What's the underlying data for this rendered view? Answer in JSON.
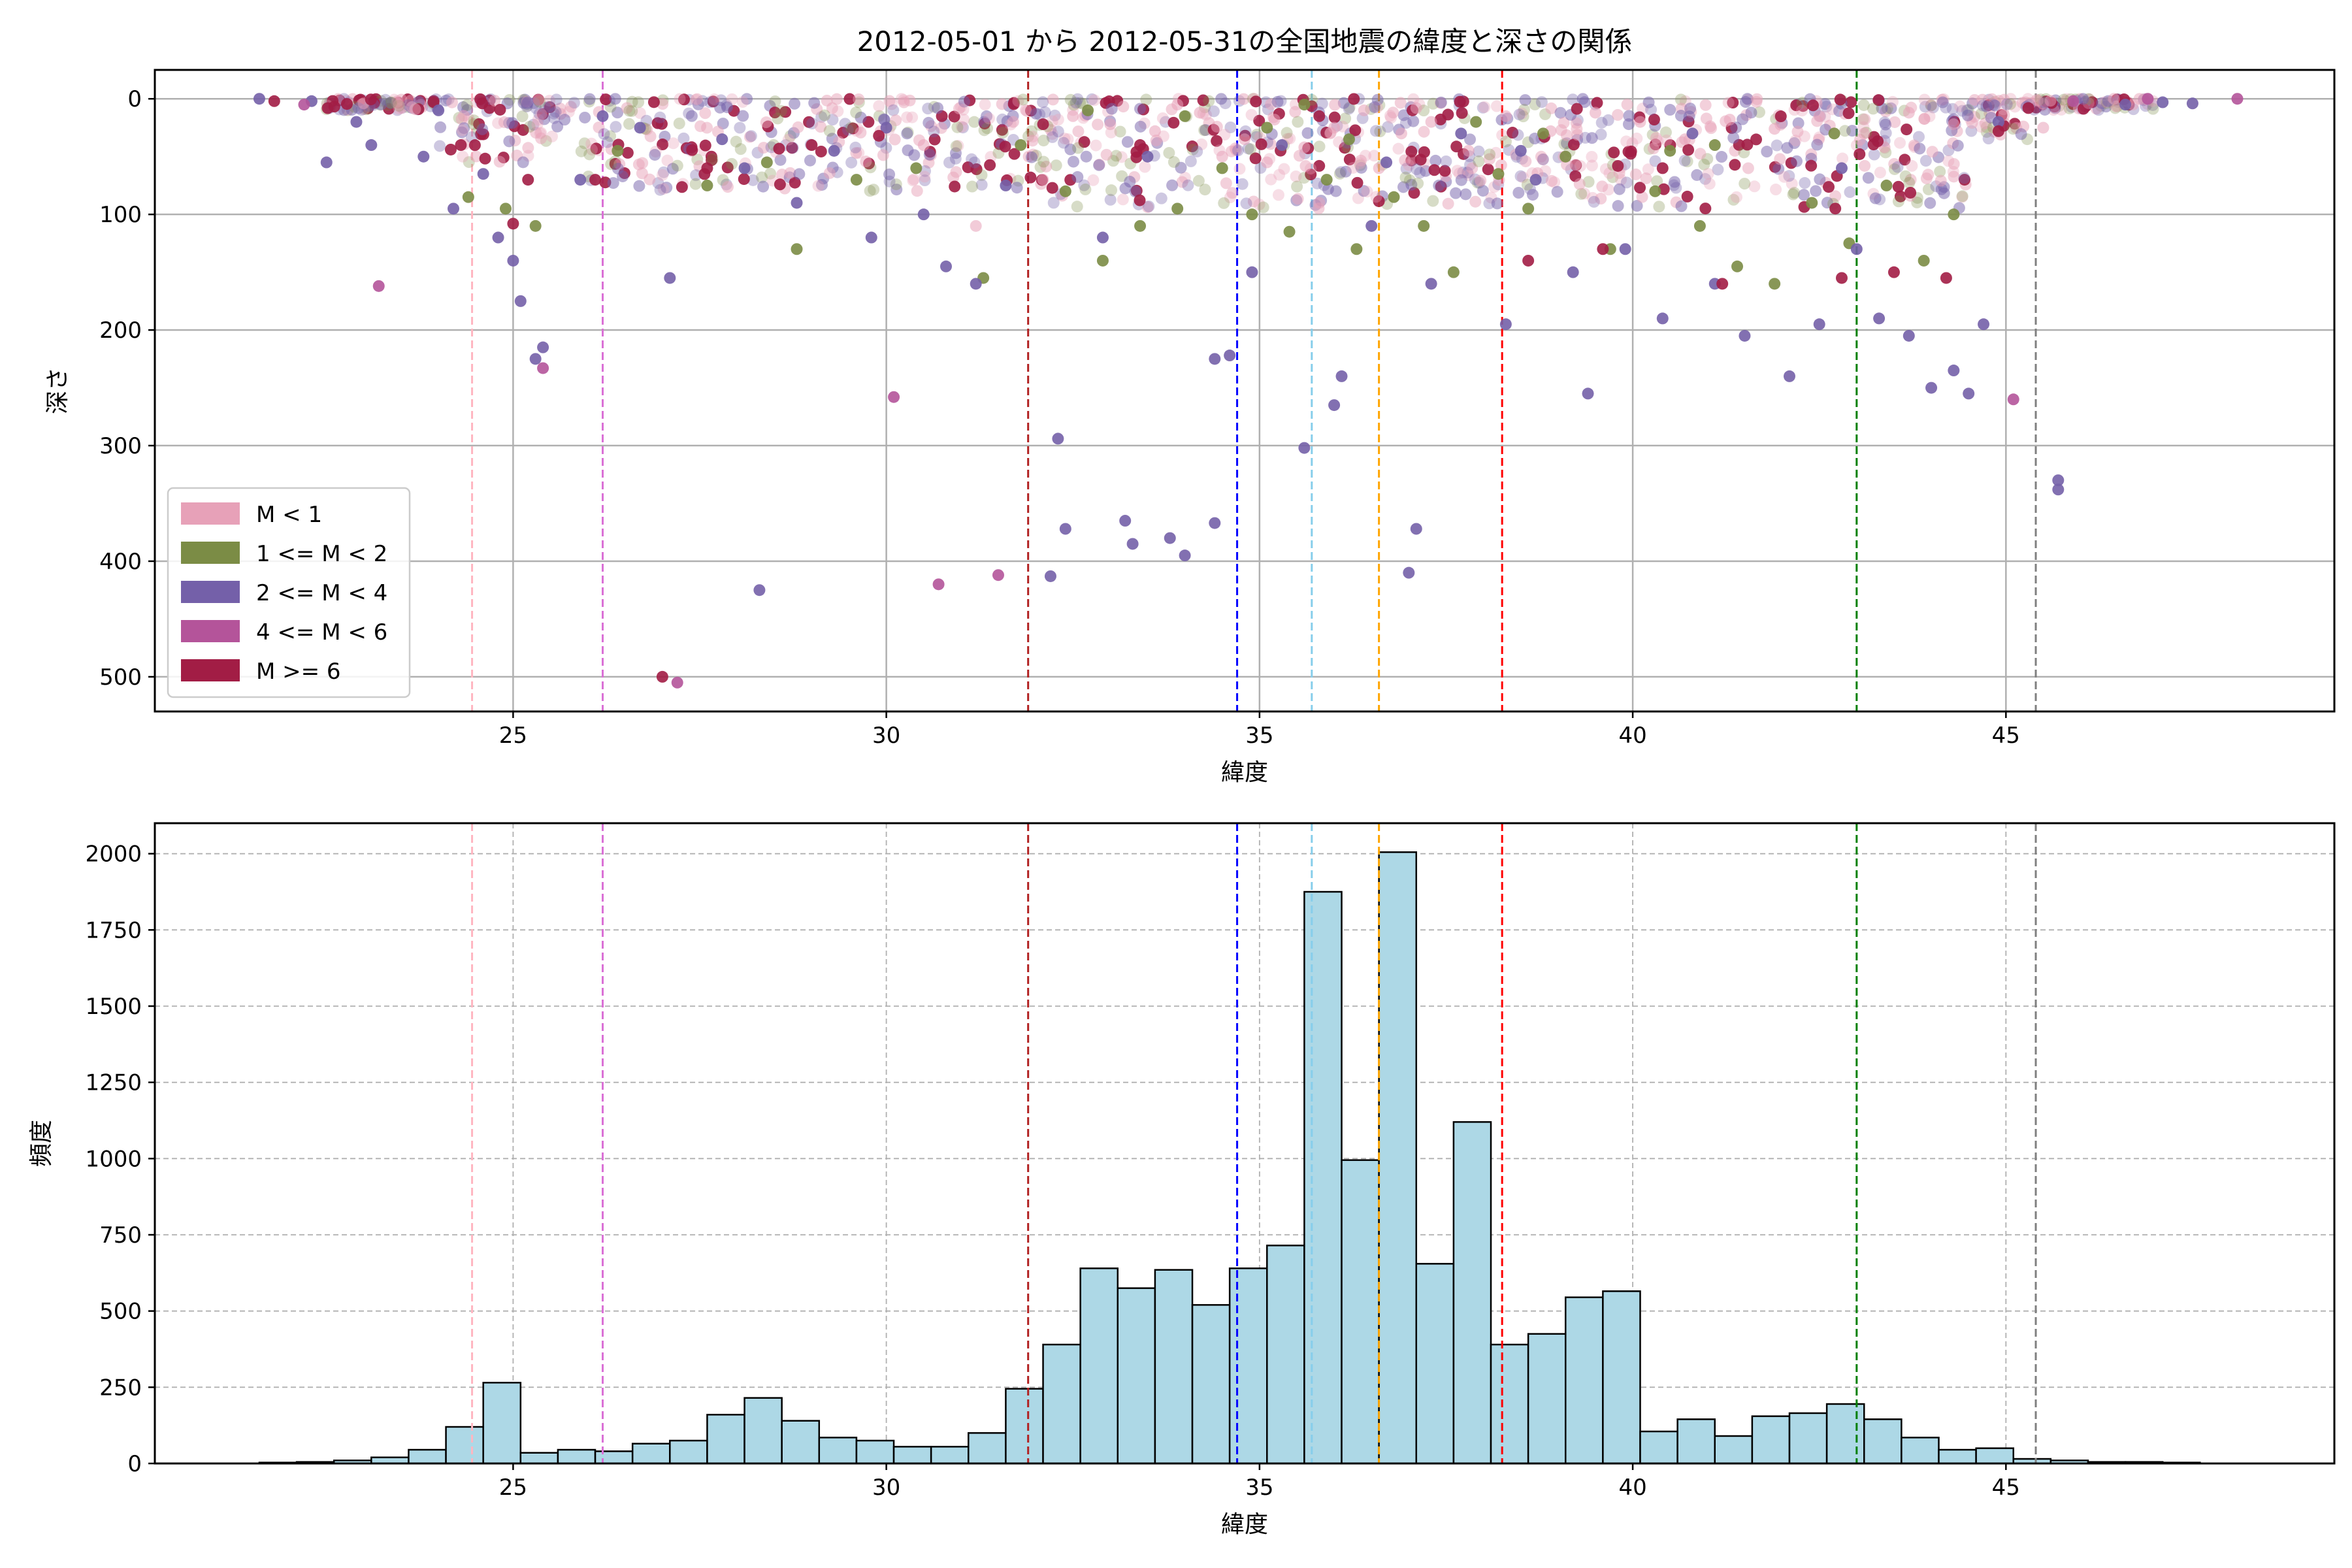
{
  "title": "2012-05-01 から 2012-05-31の全国地震の緯度と深さの関係",
  "chart_data": [
    {
      "type": "scatter",
      "xlabel": "緯度",
      "ylabel": "深さ",
      "xlim": [
        20.2,
        49.4
      ],
      "ylim": [
        530,
        -25
      ],
      "y_inverted": true,
      "xticks": [
        25,
        30,
        35,
        40,
        45
      ],
      "yticks": [
        0,
        100,
        200,
        300,
        400,
        500
      ],
      "grid": true,
      "legend_position": "lower-left",
      "series": [
        {
          "name": "M < 1",
          "color": "#e7a1b8",
          "points": [
            [
              32.5,
              15
            ],
            [
              33.0,
              22
            ],
            [
              33.6,
              28
            ],
            [
              34.2,
              12
            ],
            [
              34.8,
              35
            ],
            [
              35.2,
              18
            ],
            [
              35.6,
              42
            ],
            [
              36.0,
              25
            ],
            [
              36.4,
              10
            ],
            [
              36.9,
              30
            ],
            [
              37.3,
              20
            ],
            [
              37.8,
              45
            ],
            [
              38.3,
              15
            ],
            [
              38.9,
              28
            ],
            [
              39.5,
              12
            ],
            [
              40.1,
              20
            ],
            [
              40.7,
              35
            ],
            [
              41.3,
              18
            ],
            [
              41.9,
              26
            ],
            [
              42.5,
              15
            ],
            [
              43.1,
              30
            ],
            [
              43.7,
              12
            ],
            [
              44.3,
              22
            ],
            [
              45.5,
              25
            ],
            [
              35.8,
              90
            ],
            [
              31.7,
              20
            ],
            [
              33.9,
              5
            ],
            [
              36.6,
              60
            ],
            [
              37.1,
              8
            ],
            [
              34.5,
              50
            ],
            [
              35.1,
              55
            ],
            [
              30.5,
              40
            ],
            [
              31.2,
              110
            ],
            [
              32.1,
              70
            ]
          ]
        },
        {
          "name": "1 <= M < 2",
          "color": "#7b8c45",
          "points": [
            [
              24.4,
              85
            ],
            [
              24.9,
              95
            ],
            [
              25.3,
              110
            ],
            [
              26.4,
              45
            ],
            [
              27.6,
              75
            ],
            [
              28.4,
              55
            ],
            [
              28.8,
              130
            ],
            [
              29.6,
              70
            ],
            [
              30.4,
              60
            ],
            [
              31.3,
              155
            ],
            [
              31.8,
              40
            ],
            [
              32.4,
              80
            ],
            [
              32.9,
              140
            ],
            [
              33.4,
              110
            ],
            [
              33.9,
              95
            ],
            [
              34.5,
              60
            ],
            [
              34.9,
              100
            ],
            [
              35.4,
              115
            ],
            [
              35.9,
              70
            ],
            [
              36.3,
              130
            ],
            [
              36.8,
              85
            ],
            [
              37.2,
              110
            ],
            [
              37.6,
              150
            ],
            [
              38.2,
              65
            ],
            [
              38.6,
              95
            ],
            [
              39.1,
              50
            ],
            [
              39.7,
              130
            ],
            [
              40.3,
              80
            ],
            [
              40.9,
              110
            ],
            [
              41.4,
              145
            ],
            [
              41.9,
              160
            ],
            [
              42.4,
              90
            ],
            [
              42.9,
              125
            ],
            [
              43.4,
              75
            ],
            [
              43.9,
              140
            ],
            [
              44.3,
              100
            ],
            [
              35.1,
              25
            ],
            [
              36.2,
              35
            ],
            [
              38.8,
              30
            ],
            [
              41.1,
              40
            ],
            [
              34.0,
              15
            ],
            [
              32.7,
              10
            ],
            [
              35.6,
              5
            ],
            [
              37.9,
              20
            ],
            [
              40.5,
              45
            ],
            [
              42.7,
              30
            ]
          ]
        },
        {
          "name": "2 <= M < 4",
          "color": "#7460a9",
          "points": [
            [
              22.5,
              55
            ],
            [
              22.9,
              20
            ],
            [
              23.8,
              50
            ],
            [
              24.2,
              95
            ],
            [
              24.6,
              65
            ],
            [
              24.8,
              120
            ],
            [
              25.0,
              140
            ],
            [
              25.1,
              175
            ],
            [
              25.4,
              215
            ],
            [
              25.3,
              225
            ],
            [
              25.9,
              70
            ],
            [
              26.7,
              25
            ],
            [
              27.1,
              155
            ],
            [
              27.8,
              35
            ],
            [
              28.3,
              425
            ],
            [
              28.8,
              90
            ],
            [
              29.3,
              45
            ],
            [
              29.8,
              120
            ],
            [
              30.5,
              100
            ],
            [
              30.8,
              145
            ],
            [
              31.2,
              160
            ],
            [
              31.6,
              75
            ],
            [
              32.2,
              413
            ],
            [
              32.4,
              372
            ],
            [
              32.3,
              294
            ],
            [
              32.9,
              120
            ],
            [
              33.2,
              365
            ],
            [
              33.3,
              385
            ],
            [
              33.8,
              380
            ],
            [
              34.0,
              395
            ],
            [
              34.4,
              367
            ],
            [
              34.4,
              225
            ],
            [
              34.6,
              222
            ],
            [
              34.9,
              150
            ],
            [
              35.6,
              302
            ],
            [
              36.0,
              265
            ],
            [
              36.1,
              240
            ],
            [
              36.5,
              110
            ],
            [
              37.0,
              410
            ],
            [
              37.1,
              372
            ],
            [
              37.3,
              160
            ],
            [
              37.7,
              30
            ],
            [
              38.3,
              195
            ],
            [
              38.7,
              70
            ],
            [
              39.2,
              150
            ],
            [
              39.4,
              255
            ],
            [
              39.9,
              130
            ],
            [
              40.4,
              190
            ],
            [
              41.1,
              160
            ],
            [
              41.5,
              205
            ],
            [
              42.1,
              240
            ],
            [
              42.5,
              195
            ],
            [
              43.0,
              130
            ],
            [
              43.3,
              190
            ],
            [
              43.7,
              205
            ],
            [
              44.0,
              250
            ],
            [
              44.3,
              235
            ],
            [
              44.5,
              255
            ],
            [
              44.7,
              195
            ],
            [
              45.7,
              330
            ],
            [
              45.7,
              338
            ],
            [
              46.6,
              5
            ],
            [
              47.1,
              3
            ],
            [
              47.5,
              4
            ],
            [
              21.6,
              0
            ],
            [
              22.3,
              2
            ],
            [
              23.1,
              40
            ],
            [
              24.0,
              10
            ],
            [
              26.2,
              15
            ],
            [
              28.1,
              60
            ],
            [
              30.0,
              25
            ],
            [
              33.5,
              50
            ],
            [
              35.3,
              40
            ],
            [
              36.7,
              55
            ],
            [
              38.5,
              45
            ],
            [
              40.8,
              30
            ],
            [
              42.8,
              60
            ],
            [
              44.9,
              20
            ]
          ]
        },
        {
          "name": "4 <= M < 6",
          "color": "#b4549a",
          "points": [
            [
              23.2,
              162
            ],
            [
              25.4,
              233
            ],
            [
              27.2,
              505
            ],
            [
              30.1,
              258
            ],
            [
              30.7,
              420
            ],
            [
              31.5,
              412
            ],
            [
              45.1,
              260
            ],
            [
              48.1,
              0
            ],
            [
              46.9,
              0
            ],
            [
              45.9,
              2
            ],
            [
              22.2,
              5
            ]
          ]
        },
        {
          "name": "M >= 6",
          "color": "#a21d45",
          "points": [
            [
              21.8,
              2
            ],
            [
              24.3,
              40
            ],
            [
              25.0,
              108
            ],
            [
              25.2,
              70
            ],
            [
              26.1,
              70
            ],
            [
              27.0,
              500
            ],
            [
              27.6,
              60
            ],
            [
              29.0,
              40
            ],
            [
              29.9,
              32
            ],
            [
              32.1,
              22
            ],
            [
              33.4,
              40
            ],
            [
              35.8,
              15
            ],
            [
              38.6,
              140
            ],
            [
              39.6,
              130
            ],
            [
              40.4,
              60
            ],
            [
              41.2,
              160
            ],
            [
              42.8,
              155
            ],
            [
              43.5,
              150
            ],
            [
              44.2,
              155
            ],
            [
              44.9,
              28
            ],
            [
              45.3,
              8
            ]
          ]
        }
      ]
    },
    {
      "type": "bar",
      "xlabel": "緯度",
      "ylabel": "頻度",
      "xlim": [
        20.2,
        49.4
      ],
      "ylim": [
        0,
        2100
      ],
      "xticks": [
        25,
        30,
        35,
        40,
        45
      ],
      "yticks": [
        0,
        250,
        500,
        750,
        1000,
        1250,
        1500,
        1750,
        2000
      ],
      "grid": true,
      "bin_start": 21.6,
      "bin_width": 0.5,
      "bar_color": "#add8e6",
      "values": [
        3,
        5,
        10,
        20,
        45,
        120,
        265,
        35,
        45,
        40,
        65,
        75,
        160,
        215,
        140,
        85,
        75,
        55,
        55,
        100,
        245,
        390,
        640,
        575,
        635,
        520,
        640,
        715,
        1875,
        995,
        2005,
        655,
        1120,
        390,
        425,
        545,
        565,
        105,
        145,
        90,
        155,
        165,
        195,
        145,
        85,
        45,
        50,
        15,
        10,
        5,
        5,
        3
      ]
    }
  ],
  "reference_lines": [
    {
      "x": 24.45,
      "color": "#ffb6c1"
    },
    {
      "x": 26.2,
      "color": "#da70d6"
    },
    {
      "x": 31.9,
      "color": "#b22222"
    },
    {
      "x": 34.7,
      "color": "#0000ff"
    },
    {
      "x": 35.7,
      "color": "#87ceeb"
    },
    {
      "x": 36.6,
      "color": "#ffa500"
    },
    {
      "x": 38.25,
      "color": "#ff0000"
    },
    {
      "x": 43.0,
      "color": "#008000"
    },
    {
      "x": 45.4,
      "color": "#808080"
    }
  ]
}
